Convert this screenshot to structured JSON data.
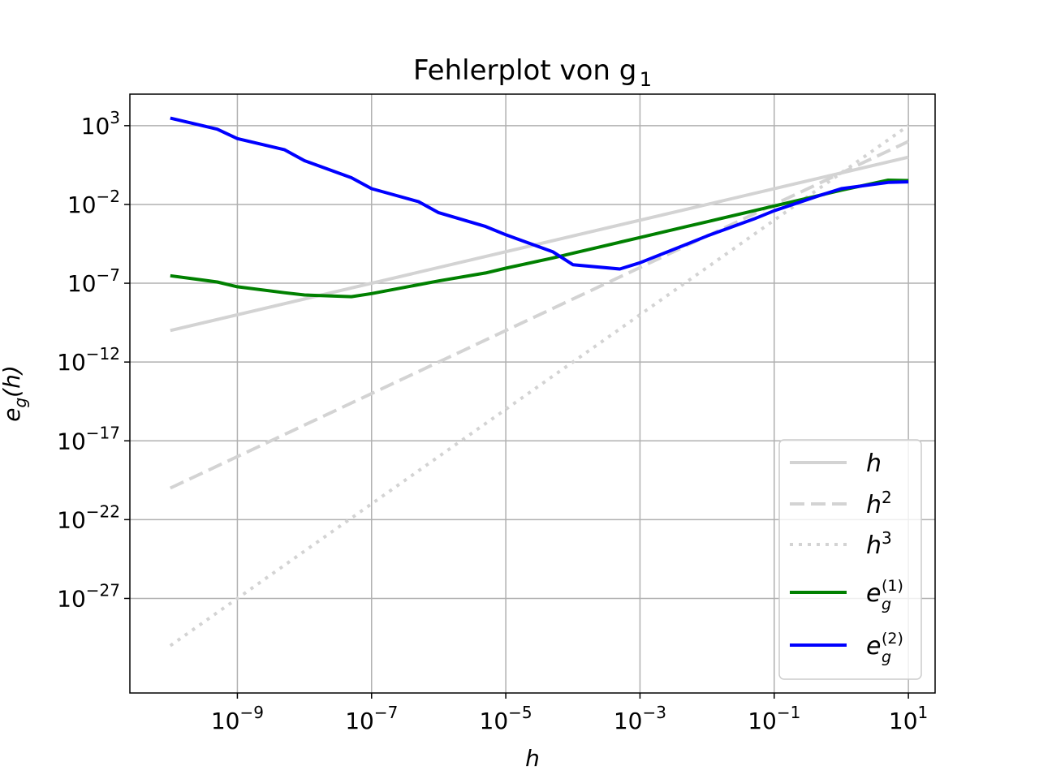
{
  "chart_data": {
    "type": "line",
    "title": "Fehlerplot von g",
    "title_subscript": "1",
    "xlabel": "h",
    "ylabel": "e",
    "ylabel_subscript": "g",
    "ylabel_arg": "(h)",
    "xscale": "log",
    "yscale": "log",
    "xlim": [
      2.5e-11,
      25
    ],
    "ylim": [
      1e-33,
      100000.0
    ],
    "grid": true,
    "legend_position": "lower-right",
    "x_ticks": [
      {
        "base": "10",
        "exp": "−9",
        "value": 1e-09
      },
      {
        "base": "10",
        "exp": "−7",
        "value": 1e-07
      },
      {
        "base": "10",
        "exp": "−5",
        "value": 1e-05
      },
      {
        "base": "10",
        "exp": "−3",
        "value": 0.001
      },
      {
        "base": "10",
        "exp": "−1",
        "value": 0.1
      },
      {
        "base": "10",
        "exp": "1",
        "value": 10
      }
    ],
    "y_ticks": [
      {
        "base": "10",
        "exp": "3",
        "value": 1000.0
      },
      {
        "base": "10",
        "exp": "−2",
        "value": 0.01
      },
      {
        "base": "10",
        "exp": "−7",
        "value": 1e-07
      },
      {
        "base": "10",
        "exp": "−12",
        "value": 1e-12
      },
      {
        "base": "10",
        "exp": "−17",
        "value": 1e-17
      },
      {
        "base": "10",
        "exp": "−22",
        "value": 1e-22
      },
      {
        "base": "10",
        "exp": "−27",
        "value": 1e-27
      }
    ],
    "series": [
      {
        "name": "h",
        "legend_sup": "",
        "legend_sub": "",
        "color": "#d3d3d3",
        "style": "solid",
        "x": [
          1e-10,
          10
        ],
        "y": [
          1e-10,
          10
        ]
      },
      {
        "name": "h",
        "legend_sup": "2",
        "legend_sub": "",
        "color": "#d3d3d3",
        "style": "dashed",
        "x": [
          1e-10,
          10
        ],
        "y": [
          1e-20,
          100
        ]
      },
      {
        "name": "h",
        "legend_sup": "3",
        "legend_sub": "",
        "color": "#d3d3d3",
        "style": "dotted",
        "x": [
          1e-10,
          10
        ],
        "y": [
          1e-30,
          1000
        ]
      },
      {
        "name": "e",
        "legend_sup": "(1)",
        "legend_sub": "g",
        "color": "#008000",
        "style": "solid",
        "x": [
          1e-10,
          5e-10,
          1e-09,
          5e-09,
          1e-08,
          5e-08,
          1e-07,
          5e-07,
          1e-06,
          5e-06,
          1e-05,
          5e-05,
          0.0001,
          0.0005,
          0.001,
          0.005,
          0.01,
          0.05,
          0.1,
          0.5,
          1,
          5,
          10
        ],
        "y": [
          3e-07,
          1.2e-07,
          6e-08,
          2.5e-08,
          1.8e-08,
          1.4e-08,
          2.2e-08,
          8e-08,
          1.4e-07,
          4.5e-07,
          9e-07,
          4e-06,
          8e-06,
          4e-05,
          8e-05,
          0.0004,
          0.0008,
          0.004,
          0.008,
          0.04,
          0.08,
          0.35,
          0.33
        ]
      },
      {
        "name": "e",
        "legend_sup": "(2)",
        "legend_sub": "g",
        "color": "#0000ff",
        "style": "solid",
        "x": [
          1e-10,
          5e-10,
          1e-09,
          5e-09,
          1e-08,
          5e-08,
          1e-07,
          5e-07,
          1e-06,
          5e-06,
          1e-05,
          5e-05,
          0.0001,
          0.0005,
          0.001,
          0.005,
          0.01,
          0.05,
          0.1,
          0.5,
          1,
          5,
          10
        ],
        "y": [
          3000,
          600,
          150,
          30,
          6,
          0.5,
          0.1,
          0.015,
          0.003,
          0.0004,
          0.00012,
          1e-05,
          1.5e-06,
          8e-07,
          2e-06,
          3e-05,
          0.0001,
          0.0012,
          0.004,
          0.04,
          0.1,
          0.25,
          0.27
        ]
      }
    ]
  }
}
